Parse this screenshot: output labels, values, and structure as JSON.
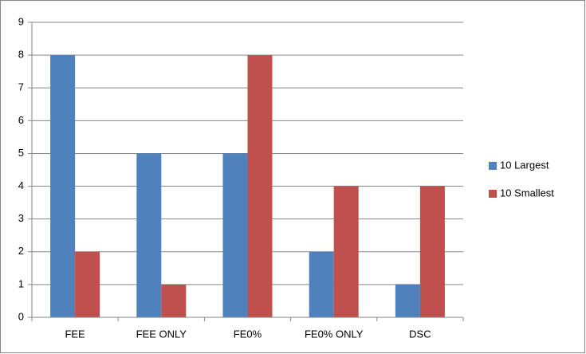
{
  "chart_data": {
    "type": "bar",
    "categories": [
      "FEE",
      "FEE ONLY",
      "FE0%",
      "FE0% ONLY",
      "DSC"
    ],
    "series": [
      {
        "name": "10 Largest",
        "color": "#4f81bd",
        "values": [
          8,
          5,
          5,
          2,
          1
        ]
      },
      {
        "name": "10 Smallest",
        "color": "#c0504d",
        "values": [
          2,
          1,
          8,
          4,
          4
        ]
      }
    ],
    "ylim": [
      0,
      9
    ],
    "yticks": [
      0,
      1,
      2,
      3,
      4,
      5,
      6,
      7,
      8,
      9
    ],
    "grid": true,
    "legend": "right"
  }
}
